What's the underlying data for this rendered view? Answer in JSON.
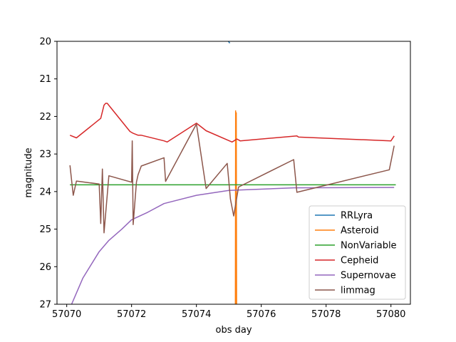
{
  "chart_data": {
    "type": "line",
    "title": "",
    "xlabel": "obs day",
    "ylabel": "magnitude",
    "xlim": [
      57069.7,
      57080.6
    ],
    "ylim": [
      20,
      27
    ],
    "y_inverted": true,
    "grid": false,
    "legend_position": "lower right",
    "x_ticks": [
      57070,
      57072,
      57074,
      57076,
      57078,
      57080
    ],
    "y_ticks": [
      20,
      21,
      22,
      23,
      24,
      25,
      26,
      27
    ],
    "series": [
      {
        "name": "RRLyra",
        "color": "#1f77b4",
        "x": [
          57074.9,
          57075.03
        ],
        "y": [
          19.9,
          20.05
        ]
      },
      {
        "name": "Asteroid",
        "color": "#ff7f0e",
        "x": [
          57075.2,
          57075.21,
          57075.22,
          57075.23,
          57075.24
        ],
        "y": [
          27.5,
          21.85,
          27.5,
          21.9,
          27.5
        ]
      },
      {
        "name": "NonVariable",
        "color": "#2ca02c",
        "x": [
          57070.1,
          57080.15
        ],
        "y": [
          23.82,
          23.82
        ]
      },
      {
        "name": "Cepheid",
        "color": "#d62728",
        "x": [
          57070.1,
          57070.3,
          57071.05,
          57071.15,
          57071.2,
          57071.25,
          57071.95,
          57072.05,
          57072.2,
          57072.3,
          57073.0,
          57073.1,
          57074.0,
          57074.3,
          57075.1,
          57075.25,
          57075.35,
          57077.1,
          57077.15,
          57080.0,
          57080.1
        ],
        "y": [
          22.5,
          22.57,
          22.05,
          21.7,
          21.65,
          21.65,
          22.4,
          22.45,
          22.5,
          22.5,
          22.65,
          22.68,
          22.18,
          22.38,
          22.68,
          22.6,
          22.65,
          22.52,
          22.55,
          22.65,
          22.52
        ]
      },
      {
        "name": "Supernovae",
        "color": "#9467bd",
        "x": [
          57070.0,
          57070.5,
          57071.0,
          57071.3,
          57071.7,
          57072.0,
          57072.5,
          57073.0,
          57074.0,
          57075.0,
          57077.0,
          57080.1
        ],
        "y": [
          27.3,
          26.3,
          25.6,
          25.3,
          25.0,
          24.75,
          24.55,
          24.32,
          24.1,
          23.97,
          23.9,
          23.89
        ]
      },
      {
        "name": "limmag",
        "color": "#8c564b",
        "x": [
          57070.1,
          57070.2,
          57070.3,
          57071.0,
          57071.05,
          57071.1,
          57071.15,
          57071.3,
          57072.0,
          57072.02,
          57072.05,
          57072.15,
          57072.2,
          57072.3,
          57073.0,
          57073.05,
          57074.0,
          57074.3,
          57074.95,
          57075.05,
          57075.15,
          57075.3,
          57077.0,
          57077.1,
          57079.95,
          57080.1
        ],
        "y": [
          23.3,
          24.1,
          23.72,
          23.8,
          24.85,
          23.4,
          25.1,
          23.58,
          23.75,
          22.65,
          24.88,
          23.75,
          23.55,
          23.32,
          23.1,
          23.73,
          22.2,
          23.92,
          23.25,
          24.2,
          24.65,
          23.88,
          23.15,
          24.02,
          23.42,
          22.78
        ]
      }
    ]
  }
}
